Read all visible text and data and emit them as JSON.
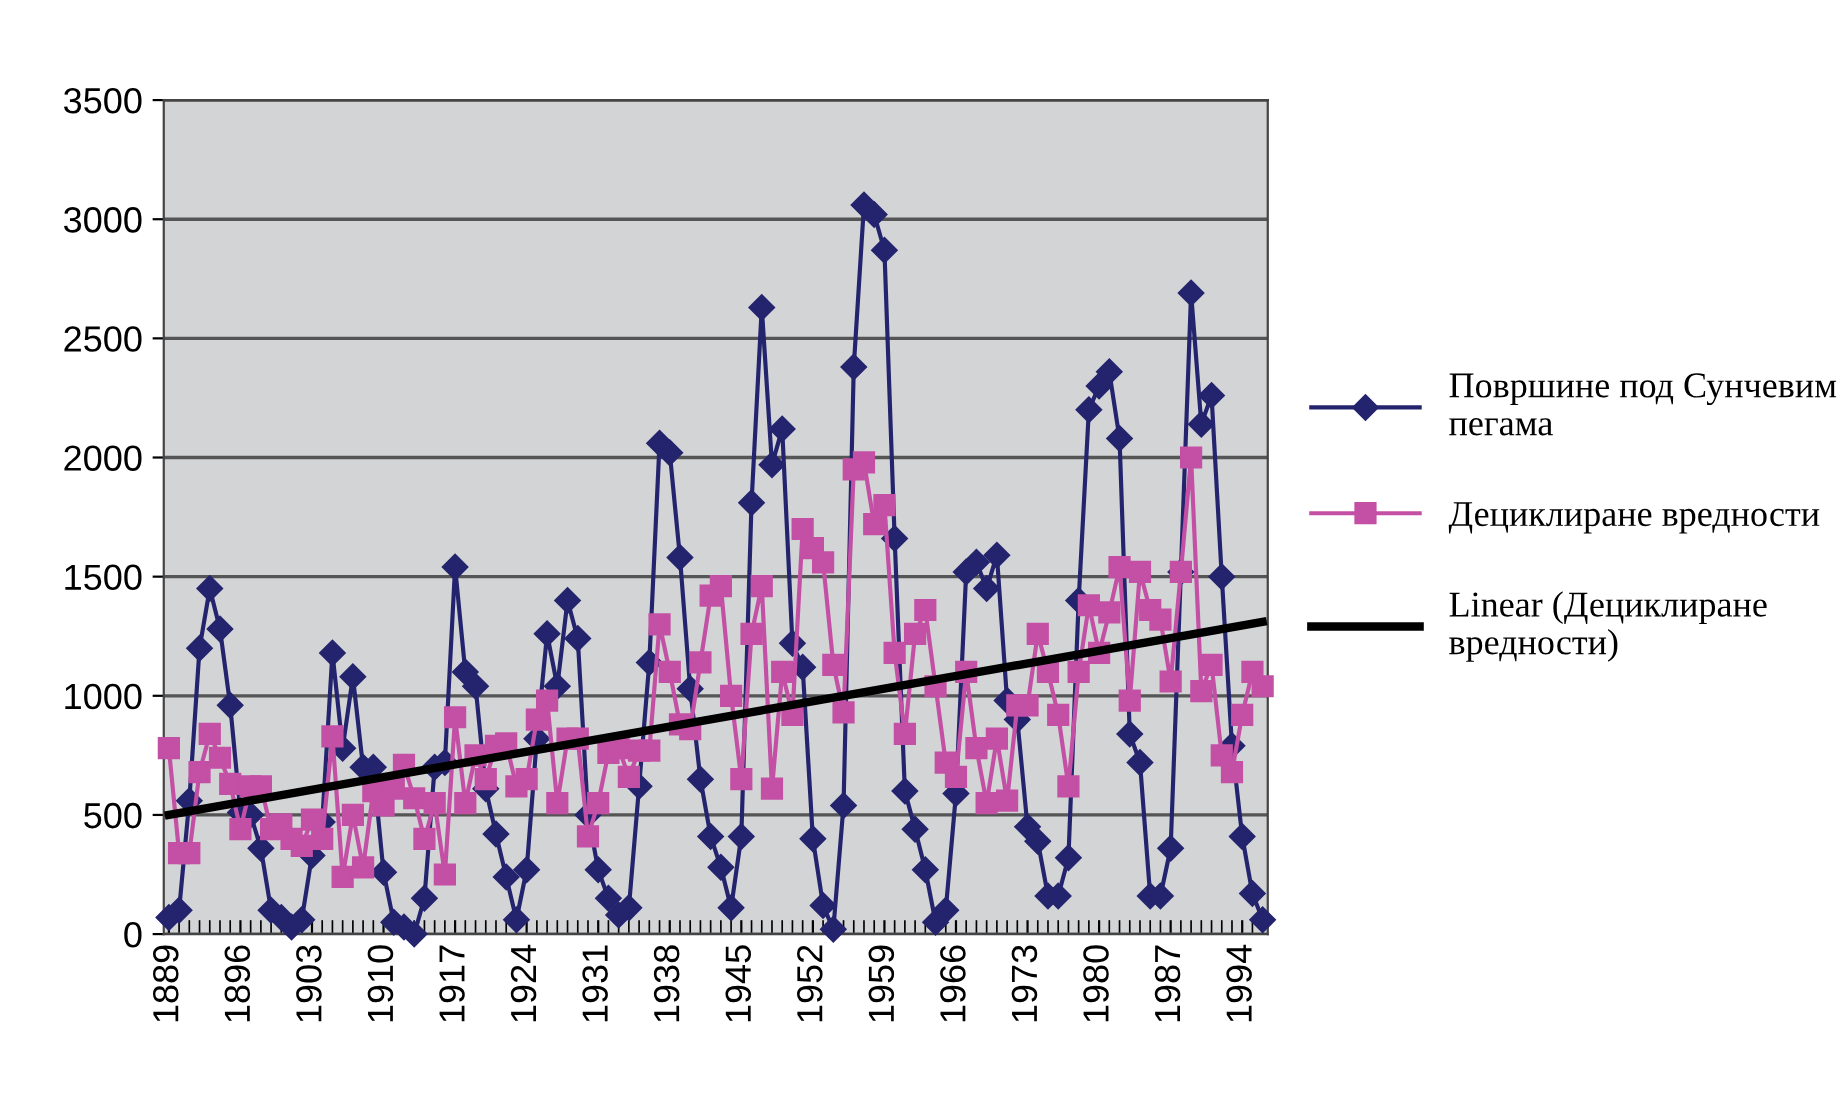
{
  "chart_data": {
    "type": "line",
    "xlim": [
      1888.5,
      1996.5
    ],
    "xticks": [
      1889,
      1896,
      1903,
      1910,
      1917,
      1924,
      1931,
      1938,
      1945,
      1952,
      1959,
      1966,
      1973,
      1980,
      1987,
      1994
    ],
    "ylim": [
      0,
      3500
    ],
    "yticks": [
      0,
      500,
      1000,
      1500,
      2000,
      2500,
      3000,
      3500
    ],
    "grid": "y",
    "legend": "right",
    "x": [
      1889,
      1890,
      1891,
      1892,
      1893,
      1894,
      1895,
      1896,
      1897,
      1898,
      1899,
      1900,
      1901,
      1902,
      1903,
      1904,
      1905,
      1906,
      1907,
      1908,
      1909,
      1910,
      1911,
      1912,
      1913,
      1914,
      1915,
      1916,
      1917,
      1918,
      1919,
      1920,
      1921,
      1922,
      1923,
      1924,
      1925,
      1926,
      1927,
      1928,
      1929,
      1930,
      1931,
      1932,
      1933,
      1934,
      1935,
      1936,
      1937,
      1938,
      1939,
      1940,
      1941,
      1942,
      1943,
      1944,
      1945,
      1946,
      1947,
      1948,
      1949,
      1950,
      1951,
      1952,
      1953,
      1954,
      1955,
      1956,
      1957,
      1958,
      1959,
      1960,
      1961,
      1962,
      1963,
      1964,
      1965,
      1966,
      1967,
      1968,
      1969,
      1970,
      1971,
      1972,
      1973,
      1974,
      1975,
      1976,
      1977,
      1978,
      1979,
      1980,
      1981,
      1982,
      1983,
      1984,
      1985,
      1986,
      1987,
      1988,
      1989,
      1990,
      1991,
      1992,
      1993,
      1994,
      1995,
      1996
    ],
    "series": [
      {
        "name": "Површине под Сунчевим пегама",
        "color": "#24246e",
        "marker": "diamond",
        "values": [
          70,
          100,
          560,
          1200,
          1450,
          1280,
          960,
          510,
          500,
          360,
          100,
          70,
          30,
          60,
          330,
          470,
          1180,
          780,
          1080,
          700,
          700,
          260,
          50,
          30,
          0,
          150,
          700,
          720,
          1540,
          1100,
          1040,
          610,
          420,
          240,
          60,
          270,
          820,
          1260,
          1040,
          1400,
          1240,
          500,
          270,
          150,
          80,
          110,
          620,
          1140,
          2060,
          2020,
          1580,
          1030,
          650,
          410,
          280,
          110,
          410,
          1810,
          2630,
          1970,
          2120,
          1220,
          1120,
          400,
          120,
          20,
          540,
          2380,
          3060,
          3020,
          2870,
          1660,
          600,
          440,
          270,
          50,
          100,
          590,
          1520,
          1560,
          1450,
          1590,
          980,
          900,
          450,
          390,
          160,
          160,
          320,
          1400,
          2200,
          2300,
          2360,
          2080,
          840,
          720,
          160,
          160,
          360,
          1520,
          2690,
          2140,
          2260,
          1500,
          790,
          410,
          170,
          60
        ]
      },
      {
        "name": "Дециклиране вредности",
        "color": "#c350a5",
        "marker": "square",
        "values": [
          780,
          340,
          340,
          680,
          840,
          740,
          630,
          440,
          620,
          620,
          440,
          460,
          400,
          370,
          480,
          400,
          830,
          240,
          500,
          280,
          600,
          540,
          610,
          710,
          570,
          400,
          550,
          250,
          910,
          550,
          750,
          650,
          790,
          800,
          620,
          650,
          900,
          980,
          550,
          820,
          820,
          410,
          550,
          760,
          780,
          660,
          770,
          770,
          1300,
          1100,
          880,
          860,
          1140,
          1420,
          1460,
          1000,
          650,
          1260,
          1460,
          610,
          1100,
          920,
          1700,
          1620,
          1560,
          1130,
          930,
          1950,
          1980,
          1720,
          1800,
          1180,
          840,
          1260,
          1360,
          1040,
          720,
          660,
          1100,
          780,
          550,
          820,
          560,
          960,
          960,
          1260,
          1100,
          920,
          620,
          1100,
          1380,
          1180,
          1350,
          1540,
          980,
          1520,
          1360,
          1320,
          1060,
          1520,
          2000,
          1020,
          1130,
          750,
          680,
          920,
          1100,
          1040
        ]
      },
      {
        "name": "Linear (Дециклиране вредности)",
        "color": "#000000",
        "marker": "none",
        "x": [
          1889,
          1996
        ],
        "values": [
          500,
          1310
        ]
      }
    ]
  }
}
